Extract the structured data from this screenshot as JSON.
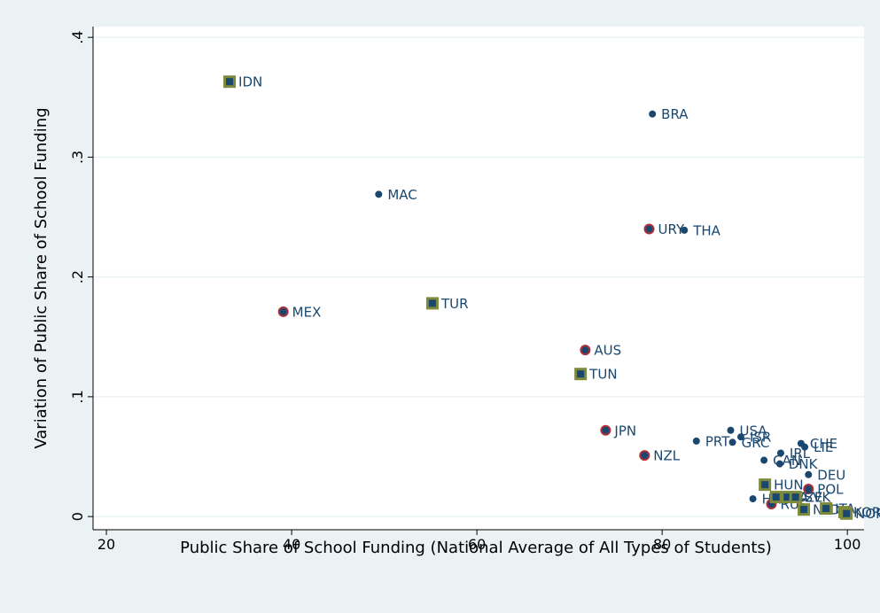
{
  "chart_data": {
    "type": "scatter",
    "x_label": "Public Share of School Funding (National Average of All Types of Students)",
    "y_label": "Variation of Public Share of School Funding",
    "xlim": [
      18.56,
      101.8
    ],
    "ylim": [
      -0.011,
      0.409
    ],
    "xticks": [
      20,
      40,
      60,
      80,
      100
    ],
    "yticks": [
      0,
      {
        "value": 0.1,
        "label": ".1"
      },
      {
        "value": 0.2,
        "label": ".2"
      },
      {
        "value": 0.3,
        "label": ".3"
      },
      {
        "value": 0.4,
        "label": ".4"
      }
    ],
    "grid": true,
    "series": [
      {
        "marker": "dot",
        "color": "#1a476f",
        "labels": [
          "BRA",
          "MAC",
          "THA",
          "USA",
          "PRT",
          "GRC",
          "ISR",
          "CHE",
          "LIE",
          "IRL",
          "CAN",
          "DNK",
          "DEU",
          "HKG"
        ],
        "x": [
          78.95,
          49.4,
          82.4,
          87.4,
          83.7,
          87.6,
          88.5,
          95.0,
          95.4,
          92.8,
          91.0,
          92.7,
          95.8,
          89.8
        ],
        "y": [
          0.336,
          0.269,
          0.239,
          0.072,
          0.063,
          0.062,
          0.0665,
          0.061,
          0.058,
          0.053,
          0.047,
          0.044,
          0.035,
          0.0148
        ]
      },
      {
        "marker": "circle",
        "color": "#1a476f",
        "edgecolor": "#b0303a",
        "labels": [
          "URY",
          "MEX",
          "AUS",
          "JPN",
          "NZL",
          "POL",
          "RUS"
        ],
        "x": [
          78.6,
          39.1,
          71.7,
          73.9,
          78.1,
          95.8,
          91.8
        ],
        "y": [
          0.24,
          0.171,
          0.139,
          0.072,
          0.051,
          0.023,
          0.0104
        ]
      },
      {
        "marker": "square",
        "color": "#1a476f",
        "edgecolor": "#7c8a3a",
        "labels": [
          "IDN",
          "TUR",
          "TUN",
          "HUN",
          "LVA",
          "CZE",
          "SVK",
          "NLD",
          "ITA",
          "KOR",
          "NOR"
        ],
        "x": [
          33.3,
          55.2,
          71.2,
          91.1,
          92.3,
          93.5,
          94.4,
          95.3,
          97.7,
          99.7,
          99.9
        ],
        "y": [
          0.363,
          0.178,
          0.119,
          0.0266,
          0.0163,
          0.0163,
          0.0163,
          0.0059,
          0.0067,
          0.0037,
          0.0025
        ]
      }
    ]
  }
}
